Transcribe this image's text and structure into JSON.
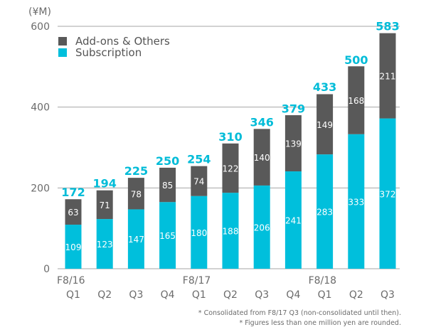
{
  "chart_data": {
    "type": "bar",
    "stacked": true,
    "unit_label": "(¥M)",
    "categories": [
      "Q1",
      "Q2",
      "Q3",
      "Q4",
      "Q1",
      "Q2",
      "Q3",
      "Q4",
      "Q1",
      "Q2",
      "Q3"
    ],
    "fiscal_year_labels": [
      "F8/16",
      "",
      "",
      "",
      "F8/17",
      "",
      "",
      "",
      "F8/18",
      "",
      ""
    ],
    "series": [
      {
        "name": "Subscription",
        "color": "#00bfdc",
        "values": [
          109,
          123,
          147,
          165,
          180,
          188,
          206,
          241,
          283,
          333,
          372
        ]
      },
      {
        "name": "Add-ons & Others",
        "color": "#595959",
        "values": [
          63,
          71,
          78,
          85,
          74,
          122,
          140,
          139,
          149,
          168,
          211
        ]
      }
    ],
    "totals": [
      172,
      194,
      225,
      250,
      254,
      310,
      346,
      379,
      433,
      500,
      583
    ],
    "totals_color": "#00bcd8",
    "ylim": [
      0,
      600
    ],
    "yticks": [
      0,
      200,
      400,
      600
    ],
    "grid": true,
    "legend": {
      "position": "top-left",
      "entries": [
        "Add-ons & Others",
        "Subscription"
      ]
    },
    "notes": [
      "* Consolidated from F8/17 Q3 (non-consolidated until then).",
      "* Figures less than one million yen are rounded."
    ]
  }
}
